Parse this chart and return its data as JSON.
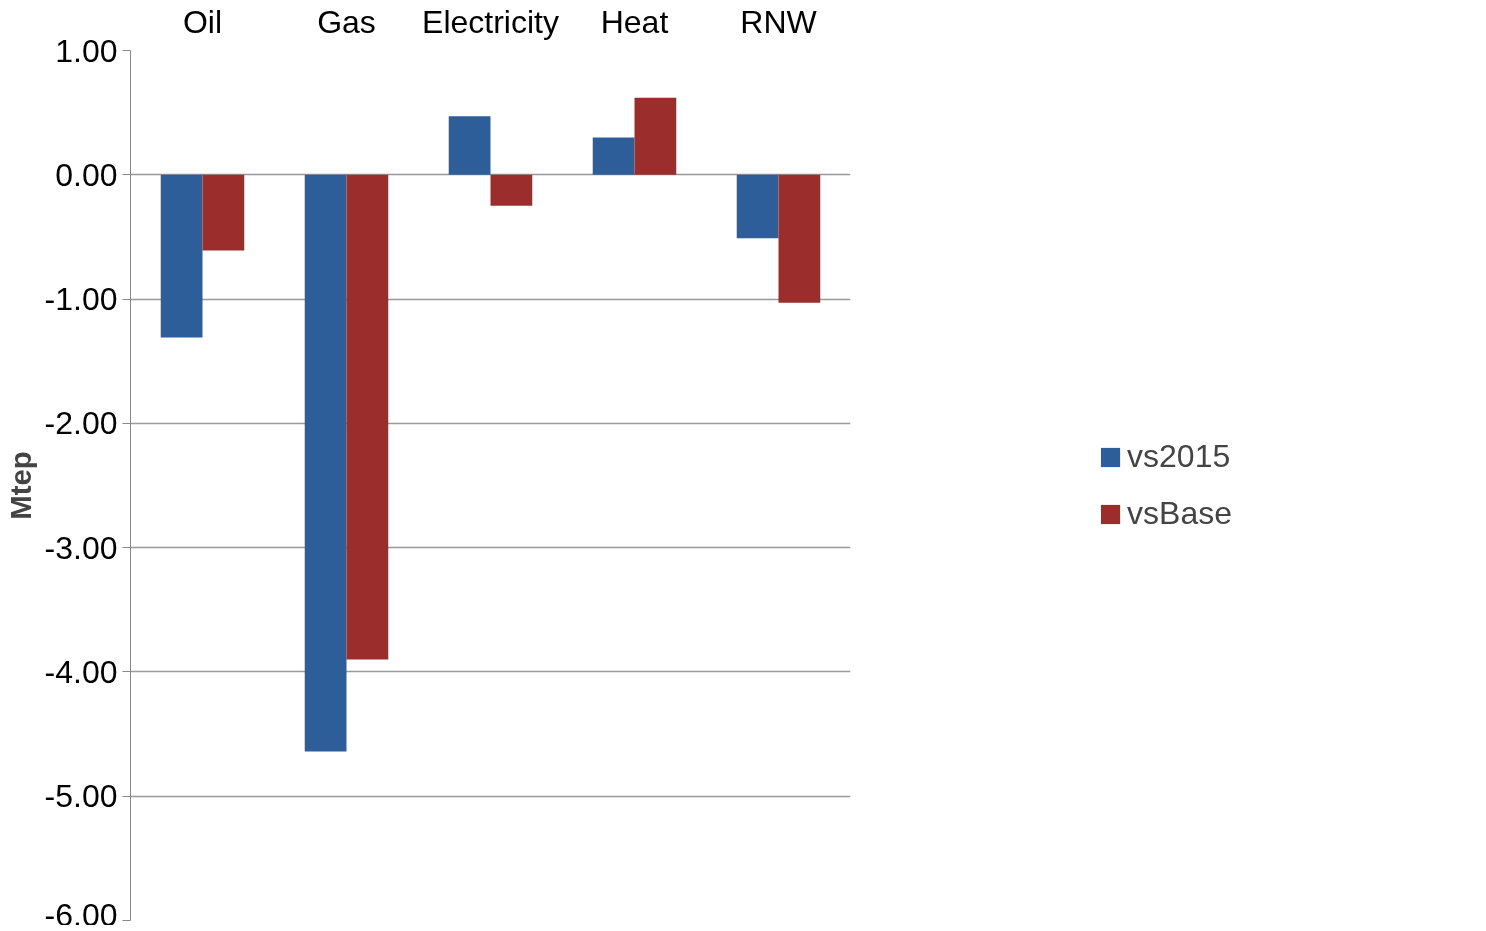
{
  "chart_data": {
    "type": "bar",
    "ylabel": "Mtep",
    "categories": [
      "Oil",
      "Gas",
      "Electricity",
      "Heat",
      "RNW"
    ],
    "series": [
      {
        "name": "vs2015",
        "color": "#2e5e99",
        "values": [
          -1.31,
          -4.64,
          0.47,
          0.3,
          -0.51
        ]
      },
      {
        "name": "vsBase",
        "color": "#9b2d2d",
        "values": [
          -0.61,
          -3.9,
          -0.25,
          0.62,
          -1.03
        ]
      }
    ],
    "ylim": [
      -6,
      1
    ],
    "yticks": [
      {
        "value": 1,
        "label": "1.00"
      },
      {
        "value": 0,
        "label": "0.00"
      },
      {
        "value": -1,
        "label": "-1.00"
      },
      {
        "value": -2,
        "label": "-2.00"
      },
      {
        "value": -3,
        "label": "-3.00"
      },
      {
        "value": -4,
        "label": "-4.00"
      },
      {
        "value": -5,
        "label": "-5.00"
      },
      {
        "value": -6,
        "label": "-6.00"
      }
    ],
    "grid": "y",
    "legend": "right"
  }
}
